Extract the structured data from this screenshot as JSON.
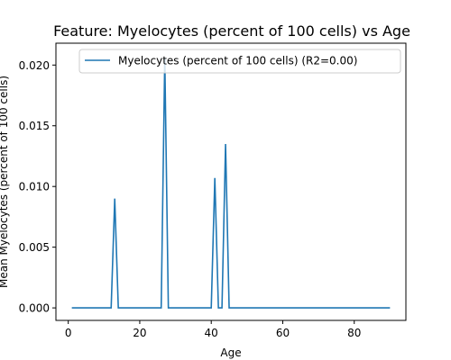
{
  "chart_data": {
    "type": "line",
    "title": "Feature: Myelocytes (percent of 100 cells) vs Age",
    "xlabel": "Age",
    "ylabel": "Mean Myelocytes (percent of 100 cells)",
    "xlim": [
      -3.45,
      94.45
    ],
    "ylim": [
      -0.00103,
      0.0218
    ],
    "xticks": [
      0,
      20,
      40,
      60,
      80
    ],
    "xtick_labels": [
      "0",
      "20",
      "40",
      "60",
      "80"
    ],
    "yticks": [
      0,
      0.005,
      0.01,
      0.015,
      0.02
    ],
    "ytick_labels": [
      "0.000",
      "0.005",
      "0.010",
      "0.015",
      "0.020"
    ],
    "grid": false,
    "legend_position": "top-right",
    "colors": {
      "series": "#1f77b4"
    },
    "series": [
      {
        "name": "Myelocytes (percent of 100 cells) (R2=0.00)",
        "x": [
          1,
          12,
          13,
          14,
          26,
          27,
          28,
          40,
          41,
          42,
          43,
          44,
          45,
          90
        ],
        "y": [
          0,
          0,
          0.009,
          0,
          0,
          0.0206,
          0,
          0,
          0.0107,
          0,
          0,
          0.0135,
          0,
          0
        ]
      }
    ]
  }
}
